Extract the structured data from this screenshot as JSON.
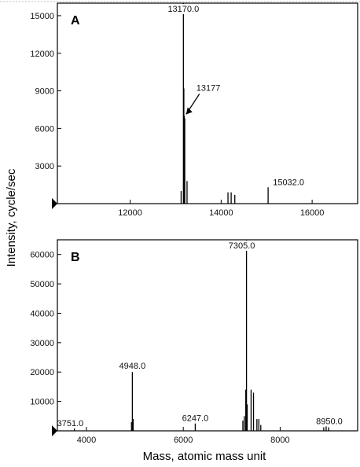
{
  "figure": {
    "ylabel": "Intensity, cycle/sec",
    "xlabel": "Mass, atomic mass unit"
  },
  "chart_data": [
    {
      "type": "line",
      "panel_label": "A",
      "xlabel": "",
      "ylabel": "Intensity, cycle/sec",
      "xlim": [
        10400,
        17000
      ],
      "ylim": [
        0,
        16000
      ],
      "xticks": [
        12000,
        14000,
        16000
      ],
      "yticks": [
        3000,
        6000,
        9000,
        12000,
        15000
      ],
      "grid": false,
      "annotations": [
        {
          "text": "13170.0",
          "x": 13170,
          "y": 16000
        },
        {
          "text": "13177",
          "x": 13177,
          "y": 7000,
          "arrow": true
        },
        {
          "text": "15032.0",
          "x": 15032,
          "y": 1300
        }
      ],
      "peaks": [
        {
          "x": 13170,
          "y": 16000
        },
        {
          "x": 13180,
          "y": 9200
        },
        {
          "x": 13190,
          "y": 7000
        },
        {
          "x": 13200,
          "y": 6800
        },
        {
          "x": 13120,
          "y": 1000
        },
        {
          "x": 13250,
          "y": 1800
        },
        {
          "x": 14150,
          "y": 900
        },
        {
          "x": 14220,
          "y": 900
        },
        {
          "x": 14300,
          "y": 700
        },
        {
          "x": 15032,
          "y": 1300
        }
      ]
    },
    {
      "type": "line",
      "panel_label": "B",
      "xlabel": "Mass, atomic mass unit",
      "ylabel": "Intensity, cycle/sec",
      "xlim": [
        3400,
        9600
      ],
      "ylim": [
        0,
        65000
      ],
      "xticks": [
        4000,
        6000,
        8000
      ],
      "yticks": [
        10000,
        20000,
        30000,
        40000,
        50000,
        60000
      ],
      "grid": false,
      "annotations": [
        {
          "text": "3751.0",
          "x": 3751,
          "y": 800
        },
        {
          "text": "4948.0",
          "x": 4948,
          "y": 20000
        },
        {
          "text": "6247.0",
          "x": 6247,
          "y": 2500
        },
        {
          "text": "7305.0",
          "x": 7305,
          "y": 65000
        },
        {
          "text": "8950.0",
          "x": 8950,
          "y": 1500
        }
      ],
      "peaks": [
        {
          "x": 3751,
          "y": 800
        },
        {
          "x": 4930,
          "y": 3000
        },
        {
          "x": 4948,
          "y": 20000
        },
        {
          "x": 4965,
          "y": 4000
        },
        {
          "x": 6247,
          "y": 2500
        },
        {
          "x": 7230,
          "y": 3500
        },
        {
          "x": 7260,
          "y": 5000
        },
        {
          "x": 7290,
          "y": 14000
        },
        {
          "x": 7305,
          "y": 65000
        },
        {
          "x": 7320,
          "y": 9000
        },
        {
          "x": 7400,
          "y": 14000
        },
        {
          "x": 7450,
          "y": 13000
        },
        {
          "x": 7520,
          "y": 4000
        },
        {
          "x": 7560,
          "y": 4000
        },
        {
          "x": 7600,
          "y": 2000
        },
        {
          "x": 8900,
          "y": 1200
        },
        {
          "x": 8950,
          "y": 1500
        },
        {
          "x": 9000,
          "y": 1200
        }
      ]
    }
  ]
}
